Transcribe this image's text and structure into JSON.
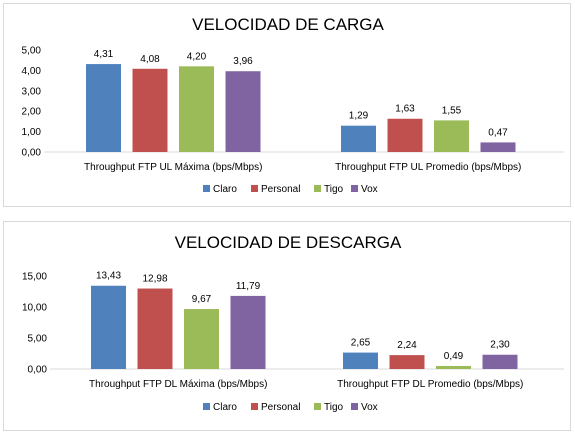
{
  "colors": {
    "Claro": "#4f81bd",
    "Personal": "#c0504d",
    "Tigo": "#9bbb59",
    "Vox": "#8064a2"
  },
  "chart_data": [
    {
      "type": "bar",
      "title": "VELOCIDAD DE CARGA",
      "categories": [
        "Throughput FTP UL Máxima (bps/Mbps)",
        "Throughput FTP UL Promedio (bps/Mbps)"
      ],
      "series": [
        {
          "name": "Claro",
          "values": [
            4.31,
            1.29
          ],
          "labels": [
            "4,31",
            "1,29"
          ]
        },
        {
          "name": "Personal",
          "values": [
            4.08,
            1.63
          ],
          "labels": [
            "4,08",
            "1,63"
          ]
        },
        {
          "name": "Tigo",
          "values": [
            4.2,
            1.55
          ],
          "labels": [
            "4,20",
            "1,55"
          ]
        },
        {
          "name": "Vox",
          "values": [
            3.96,
            0.47
          ],
          "labels": [
            "3,96",
            "0,47"
          ]
        }
      ],
      "ylim": [
        0,
        5
      ],
      "yticks": [
        "0,00",
        "1,00",
        "2,00",
        "3,00",
        "4,00",
        "5,00"
      ],
      "ytick_values": [
        0,
        1,
        2,
        3,
        4,
        5
      ],
      "grid": false,
      "legend": "bottom"
    },
    {
      "type": "bar",
      "title": "VELOCIDAD DE DESCARGA",
      "categories": [
        "Throughput FTP DL Máxima (bps/Mbps)",
        "Throughput FTP DL Promedio (bps/Mbps)"
      ],
      "series": [
        {
          "name": "Claro",
          "values": [
            13.43,
            2.65
          ],
          "labels": [
            "13,43",
            "2,65"
          ]
        },
        {
          "name": "Personal",
          "values": [
            12.98,
            2.24
          ],
          "labels": [
            "12,98",
            "2,24"
          ]
        },
        {
          "name": "Tigo",
          "values": [
            9.67,
            0.49
          ],
          "labels": [
            "9,67",
            "0,49"
          ]
        },
        {
          "name": "Vox",
          "values": [
            11.79,
            2.3
          ],
          "labels": [
            "11,79",
            "2,30"
          ]
        }
      ],
      "ylim": [
        0,
        15
      ],
      "yticks": [
        "0,00",
        "5,00",
        "10,00",
        "15,00"
      ],
      "ytick_values": [
        0,
        5,
        10,
        15
      ],
      "grid": false,
      "legend": "bottom"
    }
  ]
}
